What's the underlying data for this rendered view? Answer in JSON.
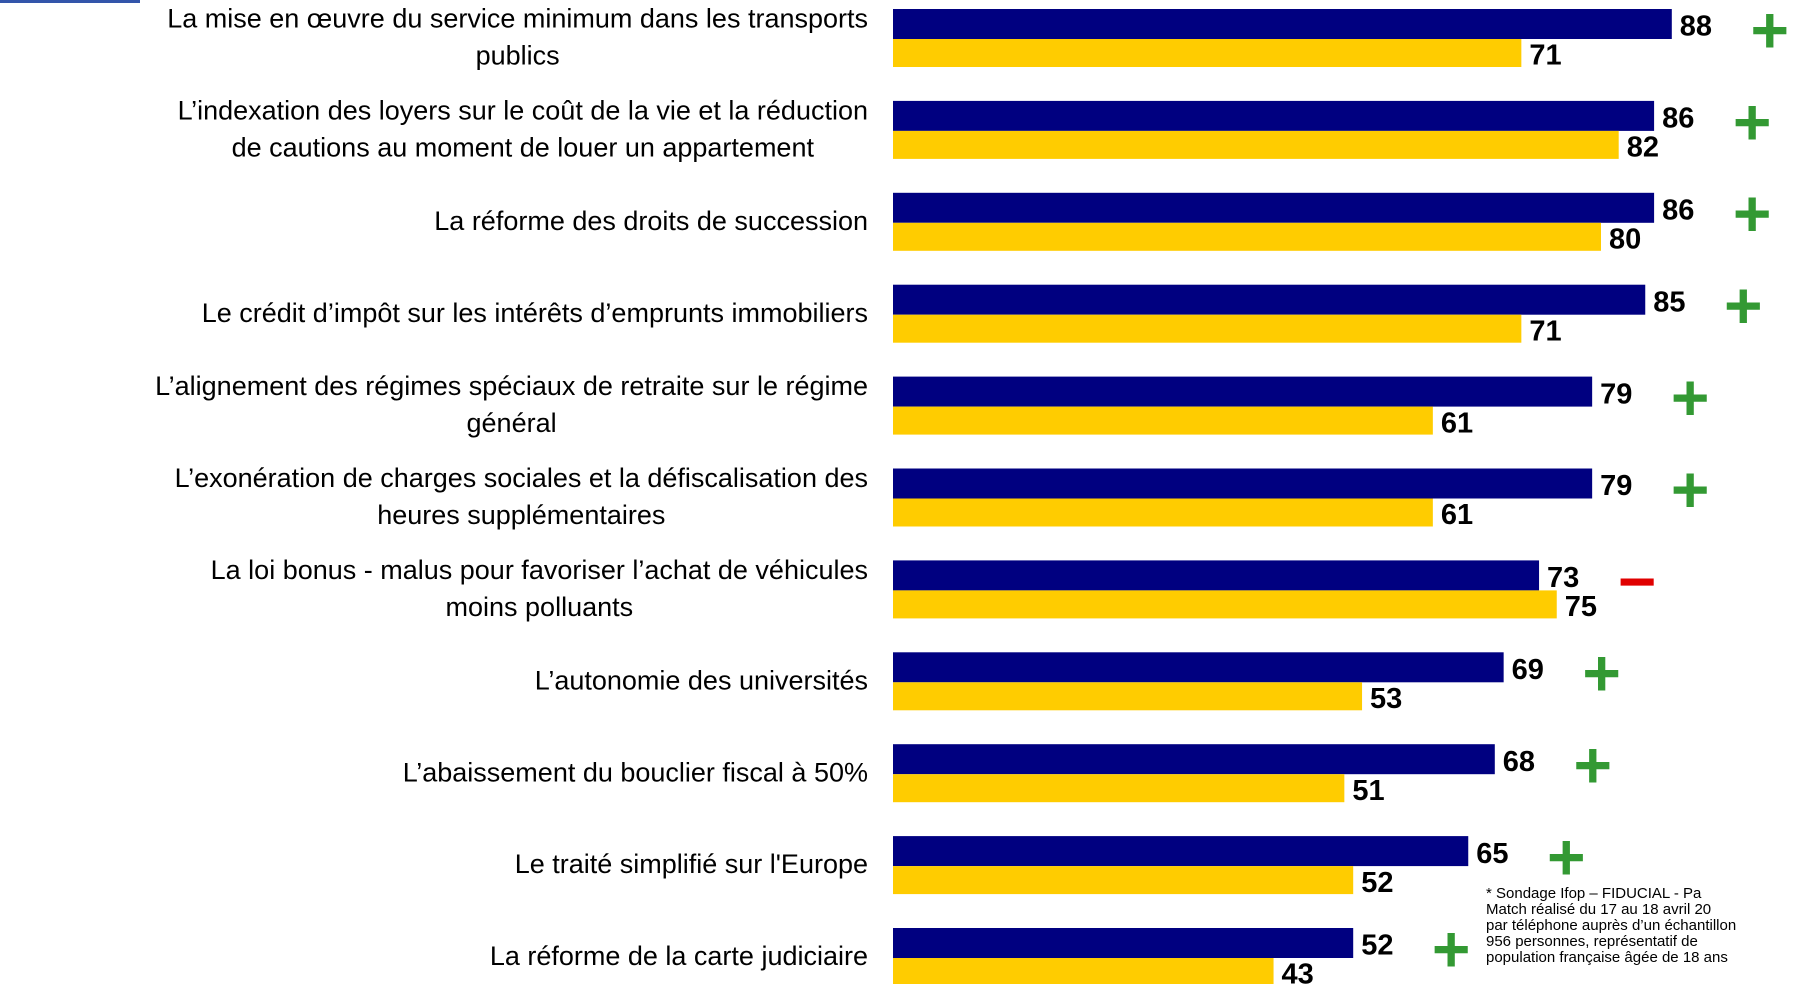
{
  "chart_data": {
    "type": "bar",
    "orientation": "horizontal",
    "categories": [
      [
        "La mise en œuvre du service minimum dans les transports",
        "publics"
      ],
      [
        "L’indexation des loyers sur le coût de la vie et la réduction",
        "de cautions au moment de louer un appartement"
      ],
      [
        "La réforme des droits de succession"
      ],
      [
        "Le crédit d’impôt sur les intérêts d’emprunts immobiliers"
      ],
      [
        "L’alignement des régimes spéciaux de retraite sur le régime",
        "général"
      ],
      [
        "L’exonération de charges sociales et la défiscalisation des",
        "heures supplémentaires"
      ],
      [
        "La loi bonus - malus pour favoriser l’achat de véhicules",
        "moins polluants"
      ],
      [
        "L’autonomie des universités"
      ],
      [
        "L’abaissement du bouclier fiscal à 50%"
      ],
      [
        "Le traité simplifié sur l'Europe"
      ],
      [
        "La réforme de la carte judiciaire"
      ]
    ],
    "series": [
      {
        "color": "#000080",
        "values": [
          88,
          86,
          86,
          85,
          79,
          79,
          73,
          69,
          68,
          65,
          52
        ]
      },
      {
        "color": "#ffcc00",
        "values": [
          71,
          82,
          80,
          71,
          61,
          61,
          75,
          53,
          51,
          52,
          43
        ]
      }
    ],
    "signs": [
      "+",
      "+",
      "+",
      "+",
      "+",
      "+",
      "−",
      "+",
      "+",
      "+",
      "+"
    ],
    "sign_colors": {
      "+": "#339933",
      "−": "#e00000"
    },
    "xlim": [
      0,
      100
    ],
    "footnote": [
      "* Sondage Ifop – FIDUCIAL - Pa",
      "Match réalisé du 17 au 18 avril 20",
      "par téléphone auprès d’un échantillon",
      "956 personnes, représentatif de",
      "population française âgée de 18 ans"
    ]
  }
}
